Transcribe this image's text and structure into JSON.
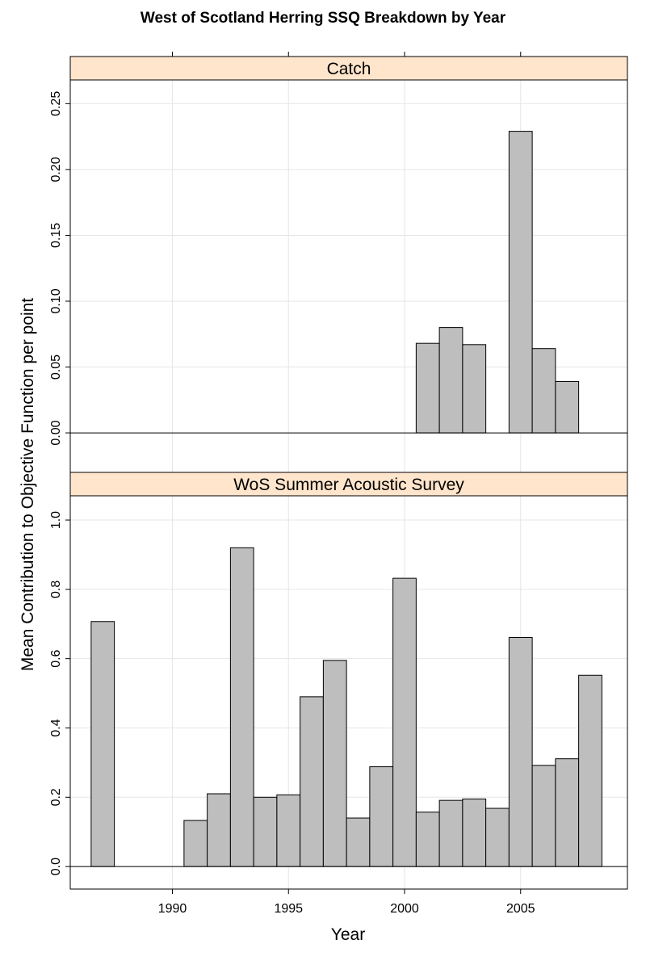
{
  "title": "West of Scotland Herring SSQ Breakdown by Year",
  "chart_data": {
    "type": "bar",
    "title": "West of Scotland Herring SSQ Breakdown by Year",
    "xlabel": "Year",
    "ylabel": "Mean Contribution to Objective Function per point",
    "xlim": [
      1985.6,
      2009.6
    ],
    "xticks": [
      1990,
      1995,
      2000,
      2005
    ],
    "grid": true,
    "colors": {
      "bar": "#bebebe",
      "strip": "#ffe5cc",
      "grid": "#e6e6e6"
    },
    "panels": [
      {
        "name": "Catch",
        "ylim": [
          -0.03,
          0.268
        ],
        "yticks": [
          0.0,
          0.05,
          0.1,
          0.15,
          0.2,
          0.25
        ],
        "ytick_labels": [
          "0.00",
          "0.05",
          "0.10",
          "0.15",
          "0.20",
          "0.25"
        ],
        "bars": [
          {
            "year": 2001,
            "value": 0.068
          },
          {
            "year": 2002,
            "value": 0.08
          },
          {
            "year": 2003,
            "value": 0.067
          },
          {
            "year": 2005,
            "value": 0.229
          },
          {
            "year": 2006,
            "value": 0.064
          },
          {
            "year": 2007,
            "value": 0.039
          }
        ]
      },
      {
        "name": "WoS Summer Acoustic Survey",
        "ylim": [
          -0.065,
          1.07
        ],
        "yticks": [
          0.0,
          0.2,
          0.4,
          0.6,
          0.8,
          1.0
        ],
        "ytick_labels": [
          "0.0",
          "0.2",
          "0.4",
          "0.6",
          "0.8",
          "1.0"
        ],
        "bars": [
          {
            "year": 1987,
            "value": 0.707
          },
          {
            "year": 1991,
            "value": 0.133
          },
          {
            "year": 1992,
            "value": 0.21
          },
          {
            "year": 1993,
            "value": 0.92
          },
          {
            "year": 1994,
            "value": 0.2
          },
          {
            "year": 1995,
            "value": 0.207
          },
          {
            "year": 1996,
            "value": 0.49
          },
          {
            "year": 1997,
            "value": 0.595
          },
          {
            "year": 1998,
            "value": 0.14
          },
          {
            "year": 1999,
            "value": 0.288
          },
          {
            "year": 2000,
            "value": 0.832
          },
          {
            "year": 2001,
            "value": 0.157
          },
          {
            "year": 2002,
            "value": 0.191
          },
          {
            "year": 2003,
            "value": 0.195
          },
          {
            "year": 2004,
            "value": 0.168
          },
          {
            "year": 2005,
            "value": 0.661
          },
          {
            "year": 2006,
            "value": 0.292
          },
          {
            "year": 2007,
            "value": 0.311
          },
          {
            "year": 2008,
            "value": 0.552
          }
        ]
      }
    ]
  }
}
